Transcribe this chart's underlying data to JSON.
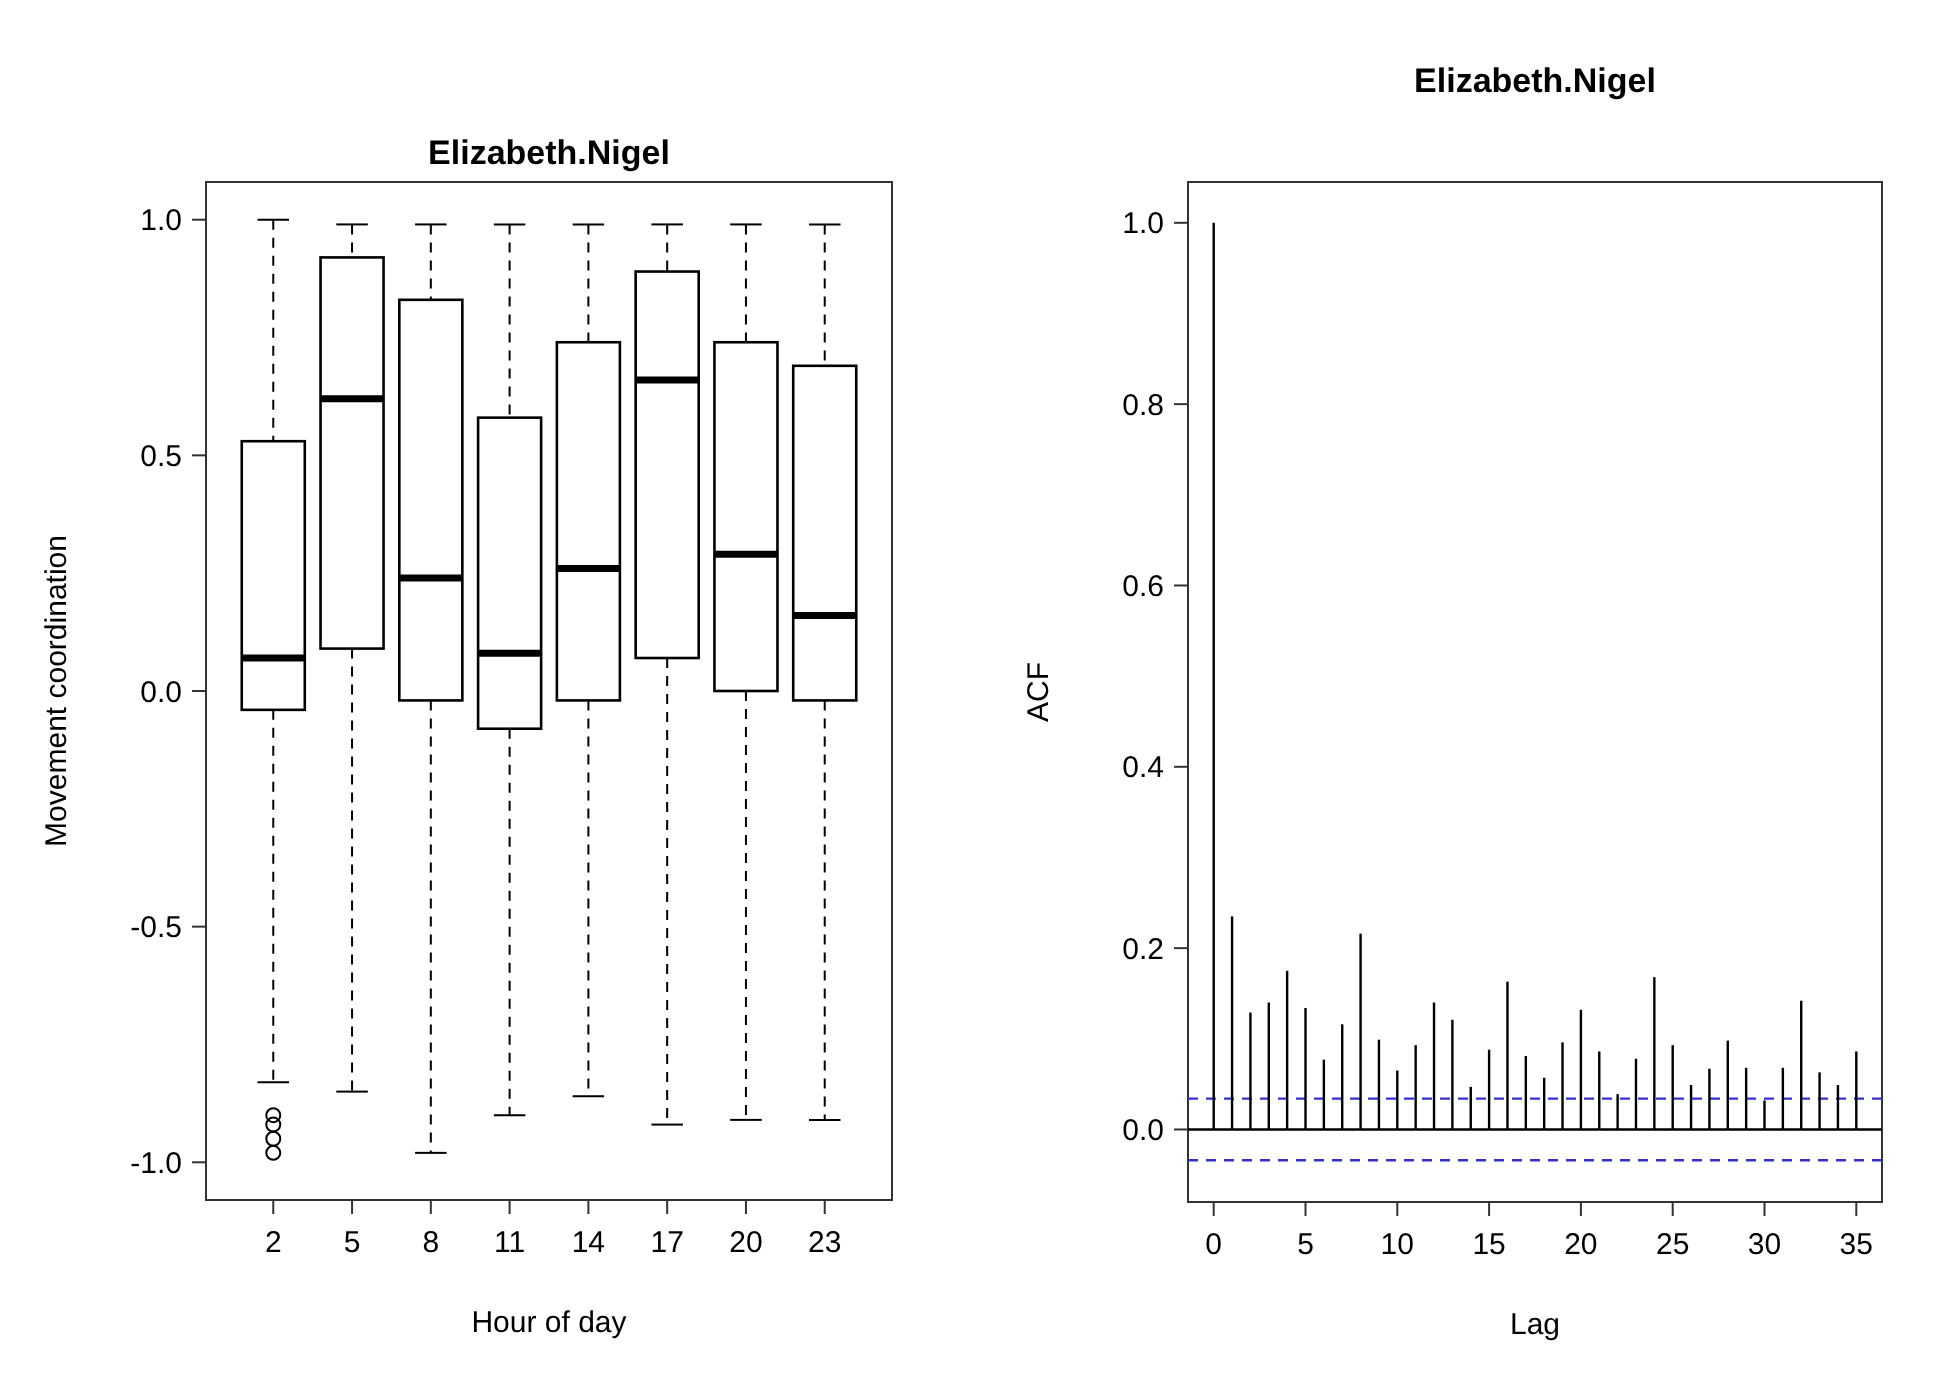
{
  "chart_data": [
    {
      "type": "box",
      "title": "Elizabeth.Nigel",
      "xlabel": "Hour of day",
      "ylabel": "Movement coordination",
      "categories": [
        "2",
        "5",
        "8",
        "11",
        "14",
        "17",
        "20",
        "23"
      ],
      "ylim": [
        -1.08,
        1.08
      ],
      "yticks": [
        {
          "value": -1,
          "label": "-1.0"
        },
        {
          "value": -0.5,
          "label": "-0.5"
        },
        {
          "value": 0,
          "label": "0.0"
        },
        {
          "value": 0.5,
          "label": "0.5"
        },
        {
          "value": 1,
          "label": "1.0"
        }
      ],
      "marker": "circle",
      "line_style": "dashed",
      "color": "#000000",
      "boxes": [
        {
          "low": -0.83,
          "q1": -0.04,
          "median": 0.07,
          "q3": 0.53,
          "high": 1.0,
          "outliers": [
            -0.9,
            -0.92,
            -0.95,
            -0.98
          ]
        },
        {
          "low": -0.85,
          "q1": 0.09,
          "median": 0.62,
          "q3": 0.92,
          "high": 0.99
        },
        {
          "low": -0.98,
          "q1": -0.02,
          "median": 0.24,
          "q3": 0.83,
          "high": 0.99
        },
        {
          "low": -0.9,
          "q1": -0.08,
          "median": 0.08,
          "q3": 0.58,
          "high": 0.99
        },
        {
          "low": -0.86,
          "q1": -0.02,
          "median": 0.26,
          "q3": 0.74,
          "high": 0.99
        },
        {
          "low": -0.92,
          "q1": 0.07,
          "median": 0.66,
          "q3": 0.89,
          "high": 0.99
        },
        {
          "low": -0.91,
          "q1": 0.0,
          "median": 0.29,
          "q3": 0.74,
          "high": 0.99
        },
        {
          "low": -0.91,
          "q1": -0.02,
          "median": 0.16,
          "q3": 0.69,
          "high": 0.99
        }
      ]
    },
    {
      "type": "bar",
      "title": "Elizabeth.Nigel",
      "xlabel": "Lag",
      "ylabel": "ACF",
      "color": "#000000",
      "x": [
        0,
        1,
        2,
        3,
        4,
        5,
        6,
        7,
        8,
        9,
        10,
        11,
        12,
        13,
        14,
        15,
        16,
        17,
        18,
        19,
        20,
        21,
        22,
        23,
        24,
        25,
        26,
        27,
        28,
        29,
        30,
        31,
        32,
        33,
        34,
        35
      ],
      "values": [
        1.0,
        0.235,
        0.129,
        0.14,
        0.175,
        0.134,
        0.077,
        0.116,
        0.216,
        0.099,
        0.065,
        0.093,
        0.14,
        0.121,
        0.047,
        0.088,
        0.163,
        0.081,
        0.057,
        0.096,
        0.132,
        0.086,
        0.039,
        0.078,
        0.168,
        0.093,
        0.049,
        0.067,
        0.098,
        0.068,
        0.032,
        0.068,
        0.142,
        0.063,
        0.049,
        0.086
      ],
      "xlim": [
        -1.4,
        36.4
      ],
      "xticks": [
        0,
        5,
        10,
        15,
        20,
        25,
        30,
        35
      ],
      "ylim": [
        -0.08,
        1.045
      ],
      "yticks": [
        {
          "value": 0,
          "label": "0.0"
        },
        {
          "value": 0.2,
          "label": "0.2"
        },
        {
          "value": 0.4,
          "label": "0.4"
        },
        {
          "value": 0.6,
          "label": "0.6"
        },
        {
          "value": 0.8,
          "label": "0.8"
        },
        {
          "value": 1,
          "label": "1.0"
        }
      ],
      "ref_lines": [
        {
          "axis": "y",
          "value": 0,
          "color": "#000000",
          "line_style": "solid"
        },
        {
          "axis": "y",
          "value": 0.034,
          "color": "#3333cc",
          "line_style": "dashed"
        },
        {
          "axis": "y",
          "value": -0.034,
          "color": "#3333cc",
          "line_style": "dashed"
        }
      ]
    }
  ]
}
